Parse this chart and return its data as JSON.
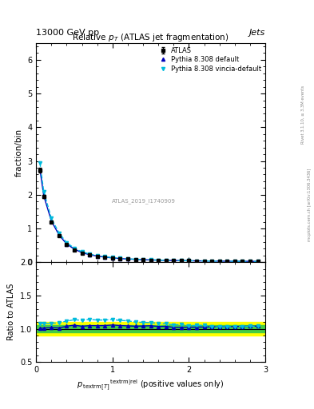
{
  "title": "Relative $p_T$ (ATLAS jet fragmentation)",
  "header_left": "13000 GeV pp",
  "header_right": "Jets",
  "right_label": "Rivet 3.1.10, ≥ 3.3M events",
  "right_label2": "mcplots.cern.ch [arXiv:1306.3436]",
  "watermark": "ATLAS_2019_I1740909",
  "ylabel_main": "fraction/bin",
  "ylabel_ratio": "Ratio to ATLAS",
  "xlim": [
    0,
    3
  ],
  "ylim_main": [
    0,
    6.5
  ],
  "ylim_ratio": [
    0.5,
    2.0
  ],
  "main_x": [
    0.05,
    0.1,
    0.2,
    0.3,
    0.4,
    0.5,
    0.6,
    0.7,
    0.8,
    0.9,
    1.0,
    1.1,
    1.2,
    1.3,
    1.4,
    1.5,
    1.6,
    1.7,
    1.8,
    1.9,
    2.0,
    2.1,
    2.2,
    2.3,
    2.4,
    2.5,
    2.6,
    2.7,
    2.8,
    2.9
  ],
  "atlas_y": [
    2.73,
    1.95,
    1.2,
    0.8,
    0.52,
    0.37,
    0.275,
    0.215,
    0.175,
    0.145,
    0.122,
    0.105,
    0.092,
    0.082,
    0.073,
    0.066,
    0.06,
    0.055,
    0.051,
    0.047,
    0.044,
    0.041,
    0.038,
    0.036,
    0.034,
    0.032,
    0.03,
    0.028,
    0.027,
    0.025
  ],
  "atlas_yerr": [
    0.06,
    0.04,
    0.025,
    0.018,
    0.012,
    0.009,
    0.007,
    0.006,
    0.005,
    0.004,
    0.004,
    0.003,
    0.003,
    0.003,
    0.002,
    0.002,
    0.002,
    0.002,
    0.002,
    0.002,
    0.002,
    0.002,
    0.002,
    0.002,
    0.001,
    0.001,
    0.001,
    0.001,
    0.001,
    0.001
  ],
  "pythia_default_y": [
    2.75,
    1.97,
    1.22,
    0.81,
    0.54,
    0.39,
    0.285,
    0.225,
    0.183,
    0.152,
    0.129,
    0.11,
    0.096,
    0.085,
    0.076,
    0.069,
    0.062,
    0.057,
    0.052,
    0.048,
    0.045,
    0.042,
    0.039,
    0.037,
    0.035,
    0.033,
    0.031,
    0.029,
    0.028,
    0.026
  ],
  "pythia_vincia_y": [
    2.95,
    2.1,
    1.3,
    0.87,
    0.58,
    0.42,
    0.31,
    0.245,
    0.198,
    0.164,
    0.139,
    0.118,
    0.103,
    0.09,
    0.08,
    0.072,
    0.065,
    0.059,
    0.054,
    0.05,
    0.046,
    0.043,
    0.04,
    0.037,
    0.035,
    0.033,
    0.031,
    0.029,
    0.028,
    0.026
  ],
  "ratio_default_y": [
    1.007,
    1.01,
    1.017,
    1.012,
    1.038,
    1.054,
    1.036,
    1.047,
    1.046,
    1.048,
    1.057,
    1.048,
    1.043,
    1.037,
    1.041,
    1.045,
    1.033,
    1.036,
    1.02,
    1.021,
    1.023,
    1.024,
    1.026,
    1.028,
    1.029,
    1.031,
    1.033,
    1.036,
    1.037,
    1.04
  ],
  "ratio_vincia_y": [
    1.08,
    1.077,
    1.083,
    1.088,
    1.115,
    1.135,
    1.127,
    1.14,
    1.131,
    1.131,
    1.139,
    1.124,
    1.12,
    1.098,
    1.096,
    1.091,
    1.083,
    1.073,
    1.059,
    1.064,
    1.045,
    1.049,
    1.053,
    1.028,
    1.029,
    1.031,
    1.033,
    1.036,
    1.037,
    1.04
  ],
  "error_band_green": 0.05,
  "error_band_yellow": 0.1,
  "atlas_color": "black",
  "pythia_default_color": "#0000BB",
  "pythia_vincia_color": "#00BBDD",
  "ref_line_color": "black"
}
